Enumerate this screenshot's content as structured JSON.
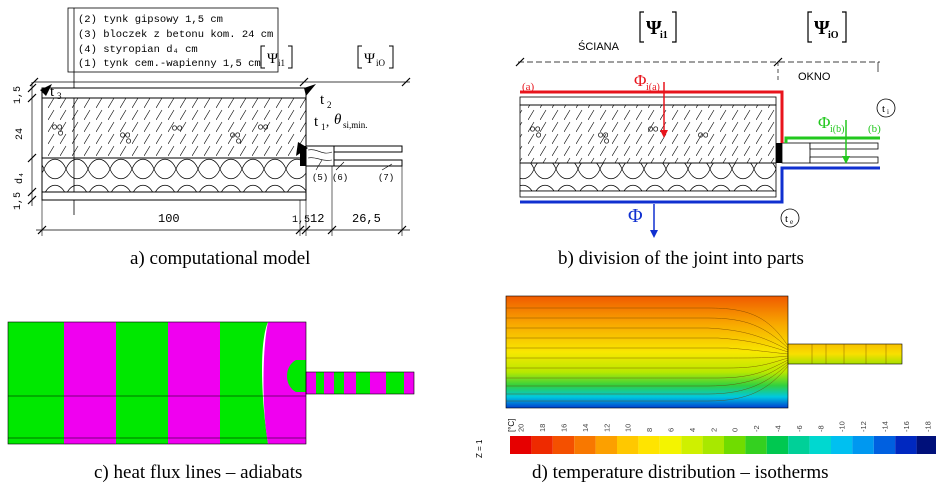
{
  "captions": {
    "a": "a) computational model",
    "b": "b) division of the joint into parts",
    "c": "c) heat flux lines – adiabats",
    "d": "d) temperature distribution – isotherms"
  },
  "panel_a": {
    "legend": [
      "(2) tynk gipsowy 1,5 cm",
      "(3) bloczek z betonu kom. 24 cm",
      "(4) styropian d₄ cm",
      "(1) tynk cem.-wapienny 1,5 cm"
    ],
    "psi_i1": "Ψ",
    "psi_i1_sub": "i1",
    "psi_io": "Ψ",
    "psi_io_sub": "iO",
    "t3": "t",
    "t3_sub": "3",
    "t2": "t",
    "t2_sub": "2",
    "t1": "t",
    "t1_sub": "1",
    "theta": "θ",
    "theta_sub": "si,min.",
    "dim_left": [
      "1,5",
      "24",
      "d₄",
      "1,5"
    ],
    "dim_bottom": [
      "100",
      "1,5",
      "12",
      "26,5"
    ],
    "markers": [
      "(5)",
      "(6)",
      "(7)"
    ]
  },
  "panel_b": {
    "psi_i1": "Ψ",
    "psi_i1_sub": "i1",
    "psi_io": "Ψ",
    "psi_io_sub": "iO",
    "sciana": "ŚCIANA",
    "okno": "OKNO",
    "label_a": "(a)",
    "label_b": "(b)",
    "phi_a": "Φ",
    "phi_a_sub": "i(a)",
    "phi_b": "Φ",
    "phi_b_sub": "i(b)",
    "phi": "Φ",
    "ti": "t",
    "ti_sub": "i",
    "te": "t",
    "te_sub": "e",
    "colors": {
      "red": "#e8141c",
      "green": "#22c81e",
      "blue": "#1030d0"
    }
  },
  "panel_c": {
    "colors": {
      "green": "#00e800",
      "magenta": "#f000f0"
    }
  },
  "panel_d": {
    "unit": "[°C]",
    "z_label": "Z = 1",
    "scale_labels": [
      "20",
      "18",
      "16",
      "14",
      "12",
      "10",
      "8",
      "6",
      "4",
      "2",
      "0",
      "-2",
      "-4",
      "-6",
      "-8",
      "-10",
      "-12",
      "-14",
      "-16",
      "-18"
    ],
    "scale_colors": [
      "#e60000",
      "#ee2a00",
      "#f45000",
      "#f87800",
      "#fca000",
      "#ffc800",
      "#ffe400",
      "#f4f400",
      "#cff000",
      "#a8e800",
      "#70dc00",
      "#34d020",
      "#00c850",
      "#00d098",
      "#00d8d0",
      "#00c0f0",
      "#0098f0",
      "#0060e0",
      "#0028c0",
      "#00107a"
    ]
  }
}
